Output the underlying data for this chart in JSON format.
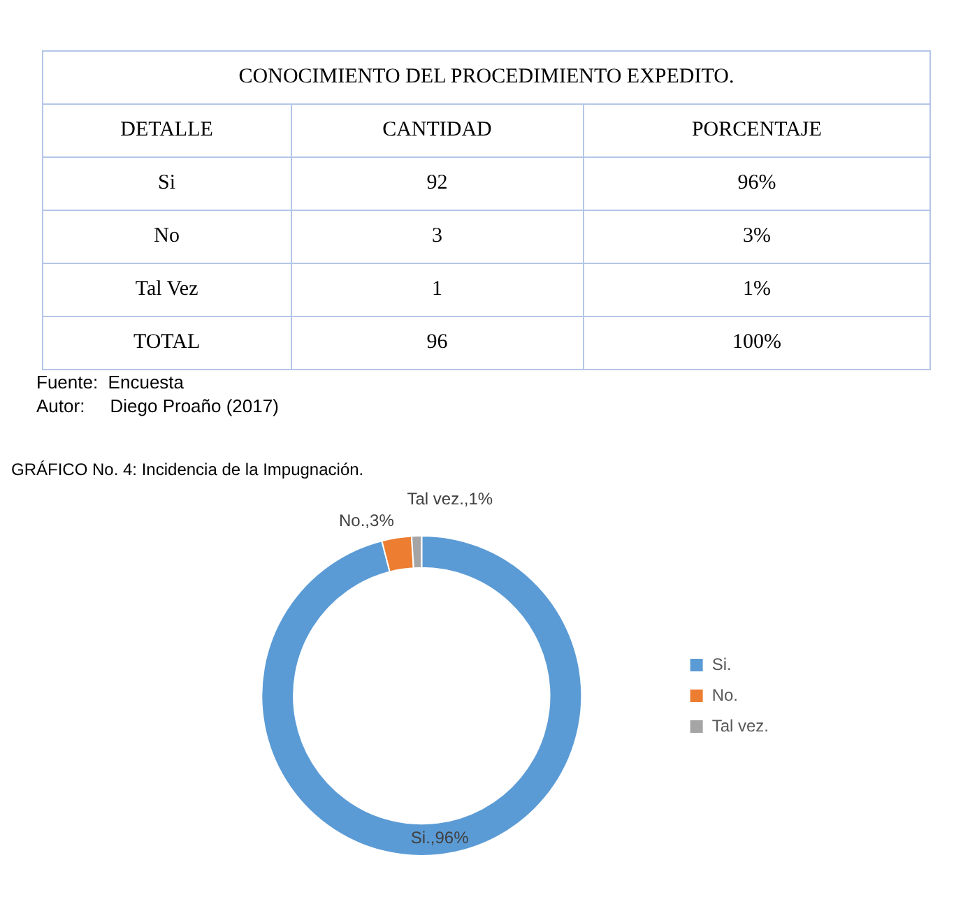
{
  "chart_data": [
    {
      "type": "other",
      "title": "CONOCIMIENTO DEL PROCEDIMIENTO EXPEDITO.",
      "annotations": [
        "DETALLE",
        "CANTIDAD",
        "PORCENTAJE",
        "Si",
        "92",
        "96%",
        "No",
        "3",
        "3%",
        "Tal Vez",
        "1",
        "1%",
        "TOTAL",
        "96",
        "100%",
        "Fuente:  Encuesta",
        "Autor:     Diego Proaño (2017)"
      ]
    },
    {
      "type": "donut",
      "title": "GRÁFICO No. 4: Incidencia de la Impugnación.",
      "categories": [
        "Si.",
        "No.",
        "Tal vez."
      ],
      "values": [
        96,
        3,
        1
      ],
      "colors": [
        "#5b9bd5",
        "#ed7d31",
        "#a5a5a5"
      ],
      "value_labels": [
        "Si.,96%",
        "No.,3%",
        "Tal vez.,1%"
      ],
      "legend": "right"
    }
  ]
}
